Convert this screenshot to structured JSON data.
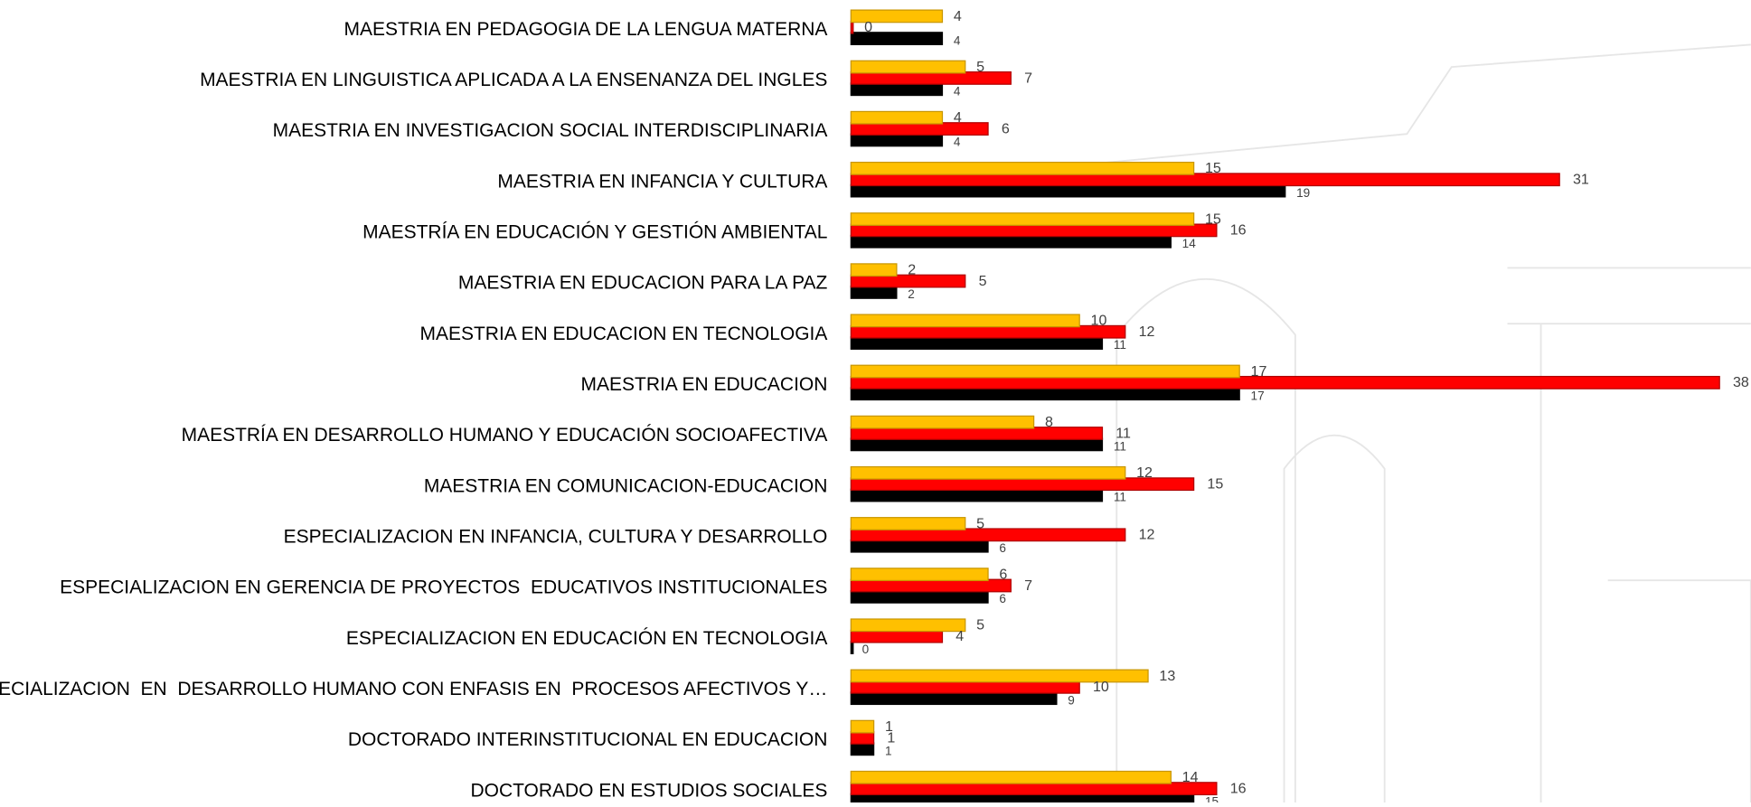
{
  "chart_data": {
    "type": "bar",
    "orientation": "horizontal",
    "categories": [
      "MAESTRIA EN PEDAGOGIA DE LA LENGUA MATERNA",
      "MAESTRIA EN LINGUISTICA APLICADA A LA ENSENANZA DEL INGLES",
      "MAESTRIA EN INVESTIGACION SOCIAL INTERDISCIPLINARIA",
      "MAESTRIA EN INFANCIA Y CULTURA",
      "MAESTRÍA EN EDUCACIÓN Y GESTIÓN AMBIENTAL",
      "MAESTRIA EN EDUCACION PARA LA PAZ",
      "MAESTRIA EN EDUCACION EN TECNOLOGIA",
      "MAESTRIA EN EDUCACION",
      "MAESTRÍA EN DESARROLLO HUMANO Y EDUCACIÓN SOCIOAFECTIVA",
      "MAESTRIA EN COMUNICACION-EDUCACION",
      "ESPECIALIZACION EN INFANCIA, CULTURA Y DESARROLLO",
      "ESPECIALIZACION EN GERENCIA DE PROYECTOS  EDUCATIVOS INSTITUCIONALES",
      "ESPECIALIZACION EN EDUCACIÓN EN TECNOLOGIA",
      "ESPECIALIZACION  EN  DESARROLLO HUMANO CON ENFASIS EN  PROCESOS AFECTIVOS Y…",
      "DOCTORADO INTERINSTITUCIONAL EN EDUCACION",
      "DOCTORADO EN ESTUDIOS SOCIALES"
    ],
    "series": [
      {
        "color": "#FFC000",
        "values": [
          4,
          5,
          4,
          15,
          15,
          2,
          10,
          17,
          8,
          12,
          5,
          6,
          5,
          13,
          1,
          14
        ]
      },
      {
        "color": "#FF0000",
        "values": [
          0,
          7,
          6,
          31,
          16,
          5,
          12,
          38,
          11,
          15,
          12,
          7,
          4,
          10,
          1,
          16
        ]
      },
      {
        "color": "#000000",
        "values": [
          4,
          4,
          4,
          19,
          14,
          2,
          11,
          17,
          11,
          11,
          6,
          6,
          0,
          9,
          1,
          15
        ]
      }
    ]
  }
}
